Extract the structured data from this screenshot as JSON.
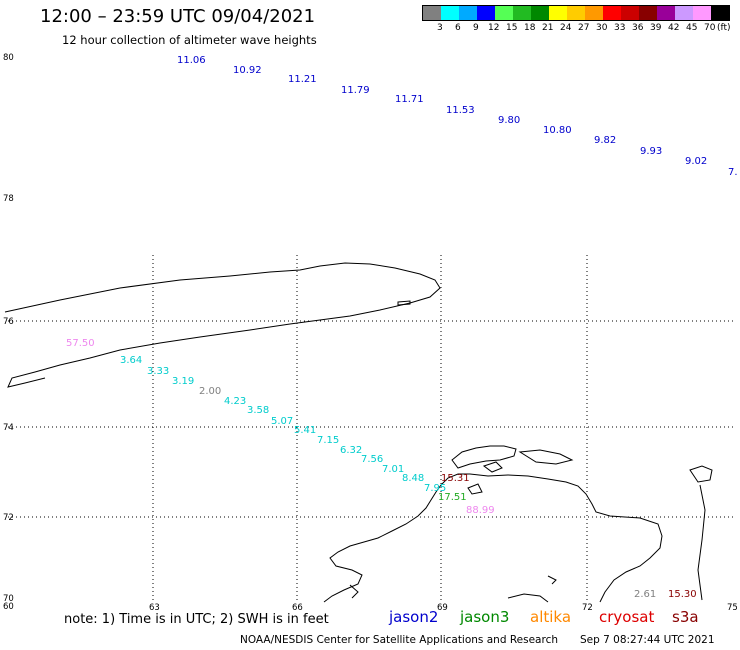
{
  "header": {
    "title": "12:00 – 23:59 UTC 09/04/2021",
    "subtitle": "12 hour collection of altimeter wave heights"
  },
  "legend": {
    "colors": [
      "#808080",
      "#00ffff",
      "#00aaff",
      "#0000ff",
      "#55ff55",
      "#22bb22",
      "#008800",
      "#ffff00",
      "#ffcc00",
      "#ff9900",
      "#ff0000",
      "#cc0000",
      "#880000",
      "#990099",
      "#cc99ff",
      "#ff99ff",
      "#000000"
    ],
    "labels": [
      "3",
      "6",
      "9",
      "12",
      "15",
      "18",
      "21",
      "24",
      "27",
      "30",
      "33",
      "36",
      "39",
      "42",
      "45",
      "70"
    ],
    "unit": "(ft)"
  },
  "axes": {
    "lon_labels": [
      "63",
      "66",
      "69",
      "72",
      "75"
    ],
    "lat_labels": [
      "74",
      "72"
    ],
    "corner_labels": [
      "80",
      "78",
      "76",
      "70",
      "60"
    ]
  },
  "tracks": {
    "jason2_top": [
      "11.06",
      "10.92",
      "11.21",
      "11.79",
      "11.71",
      "11.53",
      "9.80",
      "10.80",
      "9.82",
      "9.93",
      "9.02",
      "7."
    ],
    "main": [
      "3.64",
      "3.33",
      "3.19",
      "4.23",
      "3.58",
      "5.07",
      "5.41",
      "7.15",
      "6.32",
      "7.56",
      "7.01",
      "8.48",
      "7.95"
    ],
    "grey": [
      "2.00",
      "2.61"
    ],
    "pink": [
      "57.50",
      "88.99"
    ],
    "green": [
      "17.51"
    ],
    "darkred": [
      "15.31",
      "15.30"
    ]
  },
  "colors": {
    "jason2": "#0000cc",
    "main": "#00cccc",
    "grey": "#808080",
    "pink": "#ee88ee",
    "green": "#22aa22",
    "darkred": "#880000",
    "jason3": "#008800",
    "altika": "#ff8800",
    "cryosat": "#dd0000",
    "s3a": "#880000"
  },
  "footer": {
    "note": "note:  1) Time is in UTC;  2) SWH is in feet",
    "satellites": [
      "jason2",
      "jason3",
      "altika",
      "cryosat",
      "s3a"
    ],
    "credit": "NOAA/NESDIS Center for Satellite Applications and Research",
    "timestamp": "Sep  7 08:27:44 UTC 2021"
  }
}
